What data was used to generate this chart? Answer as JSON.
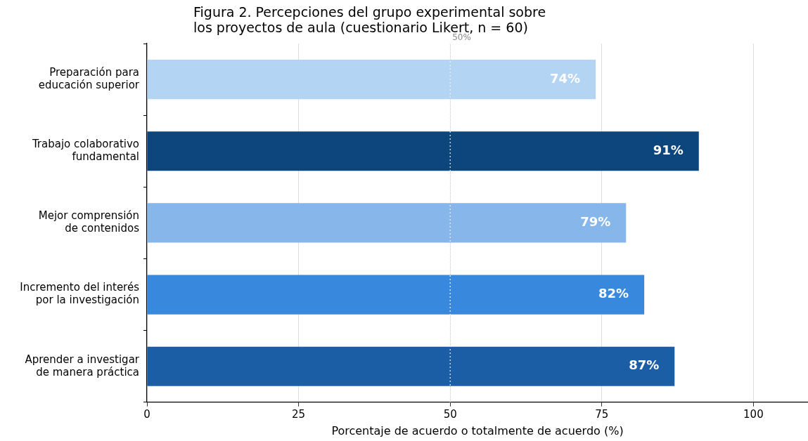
{
  "chart_data": {
    "type": "bar",
    "orientation": "horizontal",
    "title": "Figura 2. Percepciones del grupo experimental sobre\nlos proyectos de aula (cuestionario Likert, n = 60)",
    "xlabel": "Porcentaje de acuerdo o totalmente de acuerdo (%)",
    "categories": [
      "Preparación para educación superior",
      "Trabajo colaborativo fundamental",
      "Mejor comprensión de contenidos",
      "Incremento del interés por la investigación",
      "Aprender a investigar de manera práctica"
    ],
    "values": [
      74,
      91,
      79,
      82,
      87
    ],
    "colors": [
      "#b3d4f2",
      "#0d467c",
      "#86b6ea",
      "#3889dd",
      "#1b5ea6"
    ],
    "value_labels": [
      "74%",
      "91%",
      "79%",
      "82%",
      "87%"
    ],
    "xlim": [
      0,
      109
    ],
    "xticks": [
      0,
      25,
      50,
      75,
      100
    ],
    "grid": "x",
    "legend": false,
    "ref_lines": [
      {
        "axis": "x",
        "value": 50,
        "label": "50%",
        "color": "#eeeeee",
        "line_style": "dotted"
      }
    ]
  }
}
